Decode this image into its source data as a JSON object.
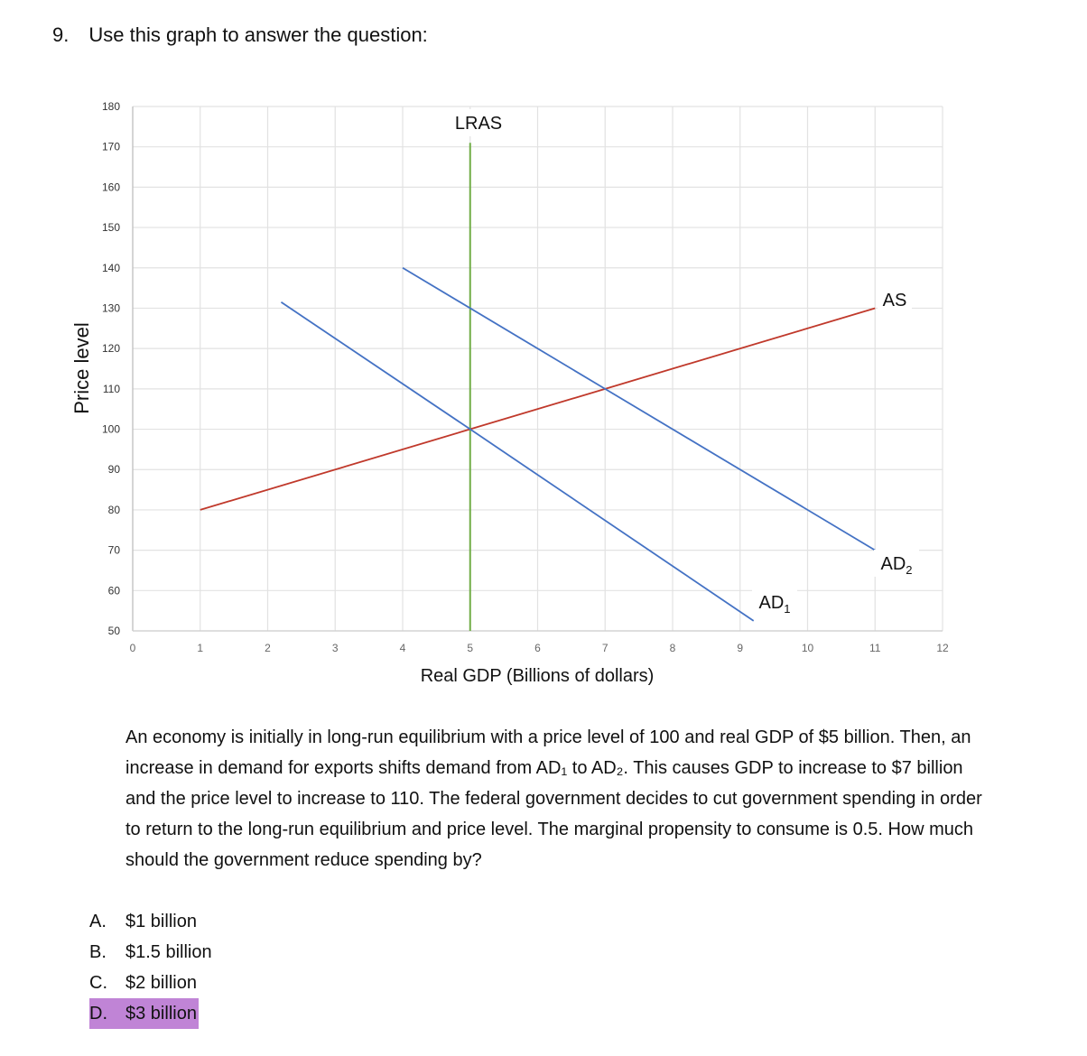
{
  "question": {
    "number": "9.",
    "prompt": "Use this graph to answer the question:",
    "body": "An economy is initially in long-run equilibrium with a price level of 100 and real GDP of $5 billion. Then, an increase in demand for exports shifts demand from AD₁ to AD₂. This causes GDP to increase to $7 billion and the price level to increase to 110. The federal government decides to cut government spending in order to return to the long-run equilibrium and price level. The marginal propensity to consume is 0.5. How much should the government reduce spending by?",
    "choices": [
      {
        "letter": "A.",
        "text": "$1 billion",
        "highlighted": false
      },
      {
        "letter": "B.",
        "text": "$1.5 billion",
        "highlighted": false
      },
      {
        "letter": "C.",
        "text": "$2 billion",
        "highlighted": false
      },
      {
        "letter": "D.",
        "text": "$3 billion",
        "highlighted": true
      }
    ],
    "highlight_color": "#c084d6"
  },
  "chart_data": {
    "type": "line",
    "title": "",
    "xlabel": "Real GDP (Billions of dollars)",
    "ylabel": "Price level",
    "xlim": [
      0,
      12
    ],
    "ylim": [
      50,
      180
    ],
    "x_ticks": [
      0,
      1,
      2,
      3,
      4,
      5,
      6,
      7,
      8,
      9,
      10,
      11,
      12
    ],
    "y_ticks": [
      50,
      60,
      70,
      80,
      90,
      100,
      110,
      120,
      130,
      140,
      150,
      160,
      170,
      180
    ],
    "grid": true,
    "legend": "none (inline labels)",
    "series": [
      {
        "name": "LRAS",
        "label": "LRAS",
        "color": "#70ad47",
        "points": [
          [
            5,
            50
          ],
          [
            5,
            171
          ]
        ]
      },
      {
        "name": "AS",
        "label": "AS",
        "color": "#c0392b",
        "points": [
          [
            1,
            80
          ],
          [
            5,
            100
          ],
          [
            7,
            110
          ],
          [
            11,
            130
          ]
        ]
      },
      {
        "name": "AD1",
        "label": "AD",
        "label_sub": "1",
        "color": "#4472c4",
        "points": [
          [
            2.2,
            131.5
          ],
          [
            5,
            100
          ],
          [
            9.2,
            52.5
          ]
        ]
      },
      {
        "name": "AD2",
        "label": "AD",
        "label_sub": "2",
        "color": "#4472c4",
        "points": [
          [
            4,
            140
          ],
          [
            7,
            110
          ],
          [
            11,
            70
          ]
        ]
      }
    ],
    "annotations": [
      {
        "text": "LRAS",
        "x": 5.15,
        "y": 176
      },
      {
        "text": "AS",
        "x": 11.3,
        "y": 131
      },
      {
        "text": "AD₂",
        "x": 11.4,
        "y": 67
      },
      {
        "text": "AD₁",
        "x": 9.5,
        "y": 57
      }
    ]
  }
}
